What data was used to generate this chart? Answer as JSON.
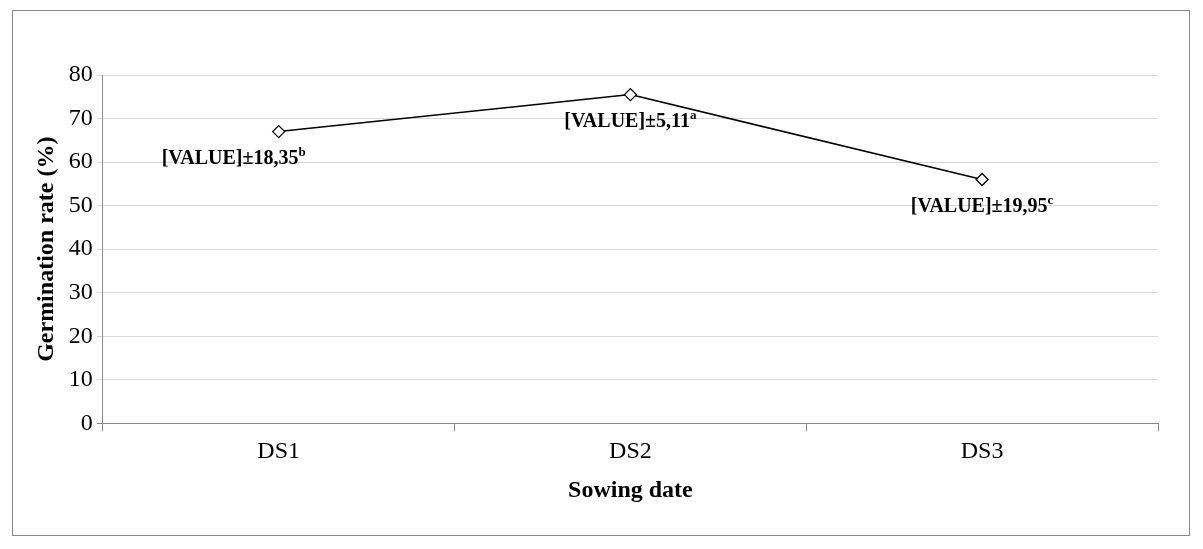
{
  "chart_data": {
    "type": "line",
    "xlabel": "Sowing date",
    "ylabel": "Germination rate (%)",
    "categories": [
      "DS1",
      "DS2",
      "DS3"
    ],
    "series": [
      {
        "color": "#000000",
        "values": [
          67,
          75.5,
          56
        ]
      }
    ],
    "ylim": [
      0,
      80
    ],
    "yticks": [
      0,
      10,
      20,
      30,
      40,
      50,
      60,
      70,
      80
    ],
    "grid": "y",
    "marker": "diamond",
    "line_style": "solid",
    "legend": false,
    "annotations": [
      {
        "text": "[VALUE]±18,35$^{b}$",
        "x": "DS1",
        "y": 67
      },
      {
        "text": "[VALUE]±5,11$^{a}$",
        "x": "DS2",
        "y": 75.5
      },
      {
        "text": "[VALUE]±19,95$^{c}$",
        "x": "DS3",
        "y": 56
      }
    ]
  }
}
